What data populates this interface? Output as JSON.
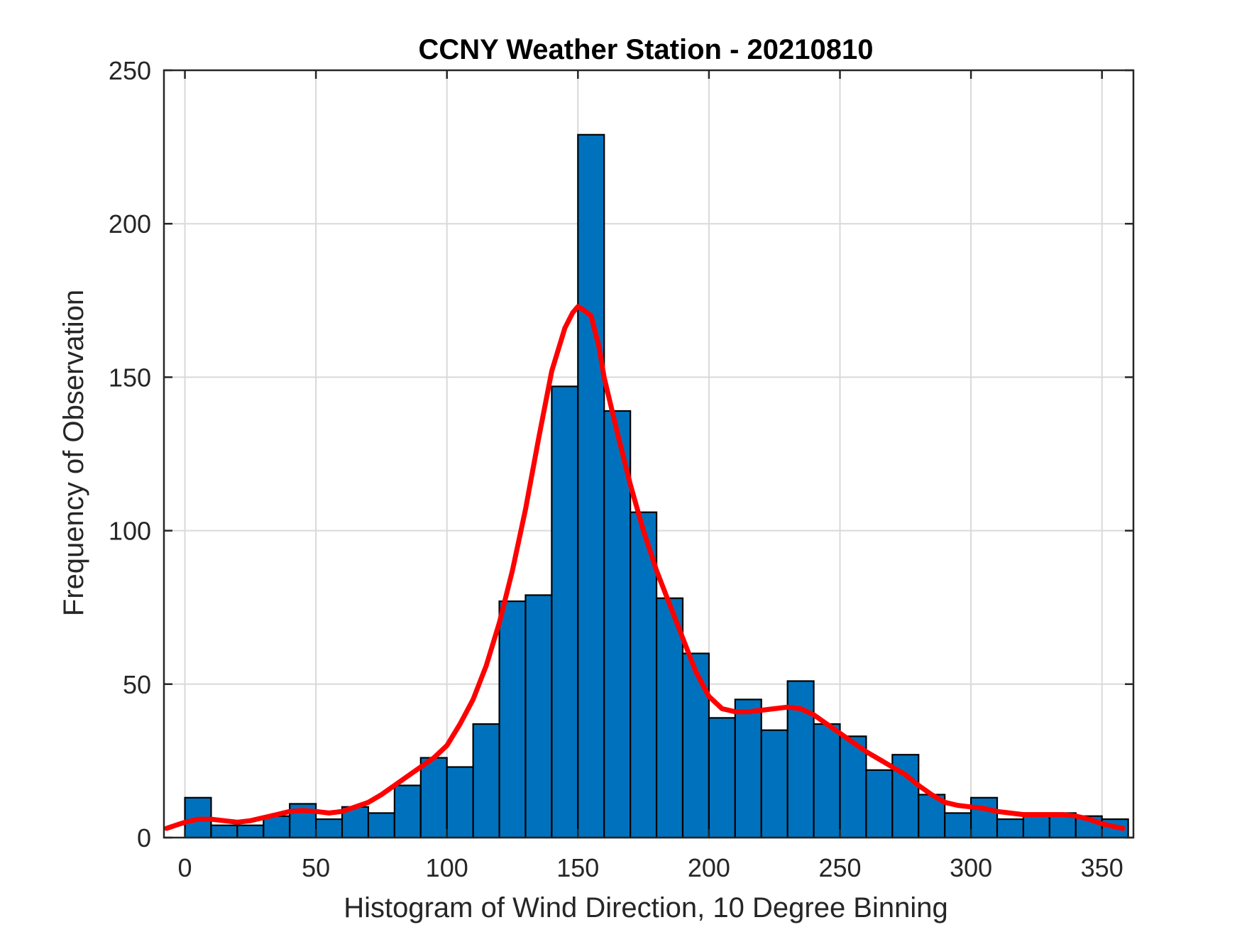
{
  "chart_data": {
    "type": "bar",
    "title": "CCNY Weather Station - 20210810",
    "xlabel": "Histogram of Wind Direction, 10 Degree Binning",
    "ylabel": "Frequency of Observation",
    "xlim": [
      -8,
      362
    ],
    "ylim": [
      0,
      250
    ],
    "xticks": [
      0,
      50,
      100,
      150,
      200,
      250,
      300,
      350
    ],
    "yticks": [
      0,
      50,
      100,
      150,
      200,
      250
    ],
    "grid": true,
    "bin_width": 10,
    "bins": [
      {
        "start": 0,
        "count": 13
      },
      {
        "start": 10,
        "count": 4
      },
      {
        "start": 20,
        "count": 4
      },
      {
        "start": 30,
        "count": 7
      },
      {
        "start": 40,
        "count": 11
      },
      {
        "start": 50,
        "count": 6
      },
      {
        "start": 60,
        "count": 10
      },
      {
        "start": 70,
        "count": 8
      },
      {
        "start": 80,
        "count": 17
      },
      {
        "start": 90,
        "count": 26
      },
      {
        "start": 100,
        "count": 23
      },
      {
        "start": 110,
        "count": 37
      },
      {
        "start": 120,
        "count": 77
      },
      {
        "start": 130,
        "count": 79
      },
      {
        "start": 140,
        "count": 147
      },
      {
        "start": 150,
        "count": 229
      },
      {
        "start": 160,
        "count": 139
      },
      {
        "start": 170,
        "count": 106
      },
      {
        "start": 180,
        "count": 78
      },
      {
        "start": 190,
        "count": 60
      },
      {
        "start": 200,
        "count": 39
      },
      {
        "start": 210,
        "count": 45
      },
      {
        "start": 220,
        "count": 35
      },
      {
        "start": 230,
        "count": 51
      },
      {
        "start": 240,
        "count": 37
      },
      {
        "start": 250,
        "count": 33
      },
      {
        "start": 260,
        "count": 22
      },
      {
        "start": 270,
        "count": 27
      },
      {
        "start": 280,
        "count": 14
      },
      {
        "start": 290,
        "count": 8
      },
      {
        "start": 300,
        "count": 13
      },
      {
        "start": 310,
        "count": 6
      },
      {
        "start": 320,
        "count": 8
      },
      {
        "start": 330,
        "count": 8
      },
      {
        "start": 340,
        "count": 7
      },
      {
        "start": 350,
        "count": 6
      }
    ],
    "fit_curve": {
      "x": [
        -7,
        0,
        5,
        10,
        15,
        20,
        25,
        30,
        35,
        40,
        45,
        50,
        55,
        60,
        65,
        70,
        75,
        80,
        85,
        90,
        95,
        100,
        105,
        110,
        115,
        120,
        125,
        130,
        135,
        140,
        145,
        148,
        150,
        152,
        155,
        158,
        160,
        165,
        170,
        175,
        180,
        185,
        190,
        195,
        200,
        205,
        210,
        215,
        220,
        225,
        230,
        235,
        240,
        245,
        250,
        255,
        260,
        265,
        270,
        275,
        280,
        285,
        290,
        295,
        300,
        305,
        310,
        315,
        320,
        325,
        330,
        335,
        340,
        345,
        350,
        355,
        358
      ],
      "y": [
        3,
        5,
        6,
        6,
        5.5,
        5,
        5.5,
        6.5,
        7.5,
        8.5,
        8.8,
        8.5,
        8,
        8.5,
        10,
        11.5,
        14,
        17,
        20,
        23,
        26,
        30,
        37,
        45,
        56,
        70,
        87,
        107,
        130,
        152,
        166,
        171,
        173,
        172,
        170,
        160,
        150,
        132,
        115,
        100,
        87,
        76,
        65,
        54,
        46,
        42,
        41,
        41,
        41.5,
        42,
        42.5,
        42,
        40,
        37,
        34,
        31,
        28,
        25.5,
        23,
        20.5,
        17,
        14,
        11.5,
        10.5,
        10,
        9.5,
        8.5,
        8,
        7.5,
        7.5,
        7.5,
        7.5,
        7,
        6,
        4.5,
        3.5,
        3
      ],
      "color": "#ff0000"
    },
    "bar_color": "#0072bd",
    "bar_edge_color": "#000000"
  }
}
